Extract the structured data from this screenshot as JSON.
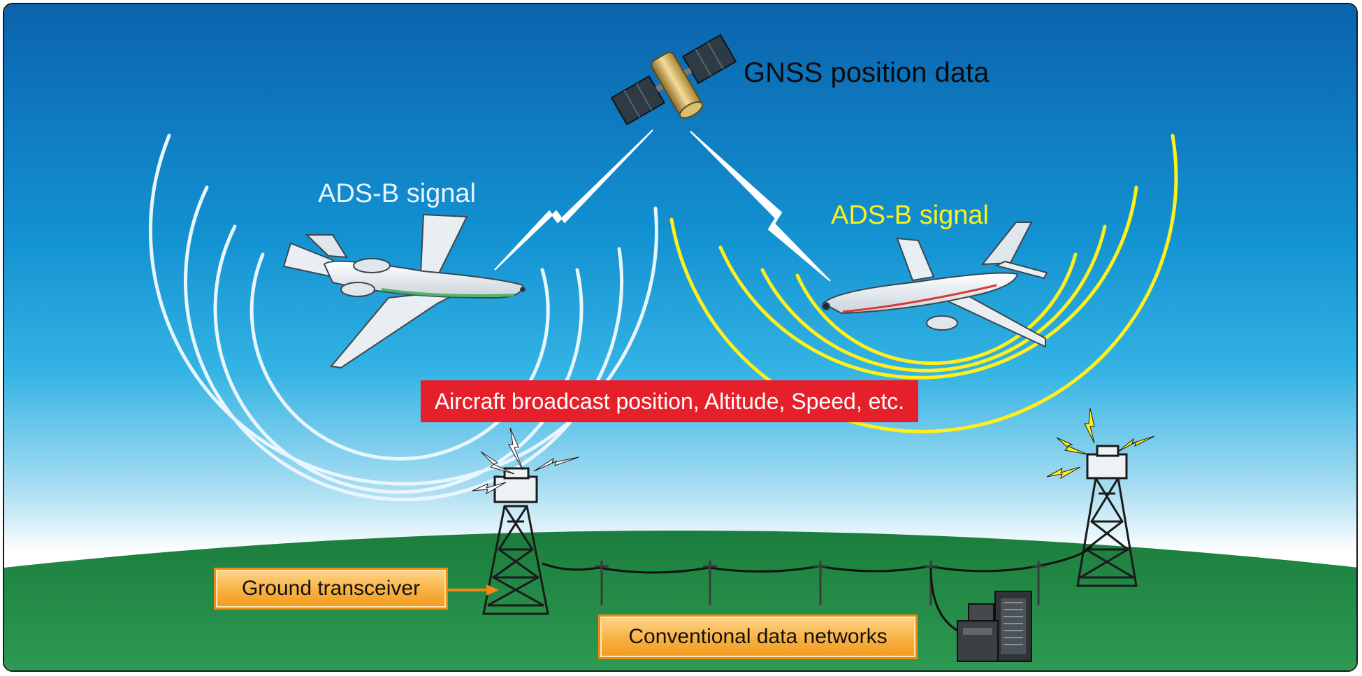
{
  "labels": {
    "gnss": "GNSS position data",
    "adsb_left": "ADS-B signal",
    "adsb_right": "ADS-B signal",
    "broadcast": "Aircraft broadcast position, Altitude, Speed, etc.",
    "ground_transceiver": "Ground transceiver",
    "conventional_networks": "Conventional data networks"
  },
  "colors": {
    "sky_top": "#0a69b4",
    "sky_bottom": "#ffffff",
    "ground": "#1f8a44",
    "signal_left": "#e8f6ff",
    "signal_right": "#ffef1a",
    "broadcast_box": "#e5202a",
    "label_box": "#f7ae3d"
  },
  "icons": [
    "satellite-icon",
    "airplane-icon",
    "radio-tower-icon",
    "lightning-bolt-icon",
    "server-rack-icon"
  ]
}
